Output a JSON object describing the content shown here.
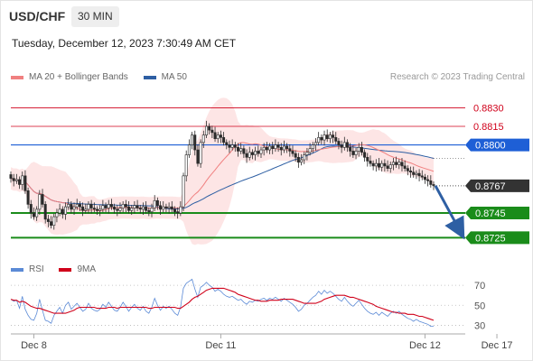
{
  "header": {
    "symbol": "USD/CHF",
    "timeframe": "30 MIN",
    "datetime": "Tuesday, December 12, 2023 7:30:49 AM CET",
    "credit": "Research © 2023 Trading Central"
  },
  "legend": {
    "ma20_label": "MA 20 + Bollinger Bands",
    "ma50_label": "MA 50",
    "rsi_label": "RSI",
    "rsi_ma_label": "9MA"
  },
  "colors": {
    "ma20": "#f08080",
    "ma50": "#2e5fa3",
    "bands_fill": "#fde0e0",
    "candle": "#2b2b2b",
    "resistance": "#d0021b",
    "pivot": "#1e5fd6",
    "support": "#1a8c1a",
    "arrow": "#2e5fa3",
    "rsi": "#5b8ad6",
    "rsi_ma": "#d0021b",
    "current_tag": "#333333"
  },
  "chart_data": [
    {
      "type": "candlestick",
      "ylim": [
        0.871,
        0.885
      ],
      "x_tick_labels": [
        "Dec 8",
        "Dec 11",
        "Dec 12",
        "Dec 17"
      ],
      "x_tick_positions": [
        8,
        73,
        144,
        169
      ],
      "levels": [
        {
          "label": "0.8830",
          "value": 0.883,
          "kind": "resistance"
        },
        {
          "label": "0.8815",
          "value": 0.8815,
          "kind": "resistance"
        },
        {
          "label": "0.8800",
          "value": 0.88,
          "kind": "pivot"
        },
        {
          "label": "0.8745",
          "value": 0.8745,
          "kind": "support"
        },
        {
          "label": "0.8725",
          "value": 0.8725,
          "kind": "support"
        }
      ],
      "current_price": {
        "label": "0.8767",
        "value": 0.8767
      },
      "forecast_target": 0.8725,
      "close": [
        0.8773,
        0.8771,
        0.8772,
        0.8768,
        0.8775,
        0.8763,
        0.8752,
        0.8745,
        0.8742,
        0.8748,
        0.876,
        0.8752,
        0.874,
        0.8738,
        0.8735,
        0.8742,
        0.8745,
        0.8748,
        0.8744,
        0.875,
        0.8752,
        0.8748,
        0.875,
        0.8752,
        0.875,
        0.8747,
        0.8748,
        0.8752,
        0.8749,
        0.8748,
        0.8747,
        0.8748,
        0.8751,
        0.8749,
        0.8752,
        0.875,
        0.8748,
        0.8747,
        0.8749,
        0.8752,
        0.875,
        0.8747,
        0.8749,
        0.8751,
        0.8749,
        0.8748,
        0.875,
        0.8747,
        0.8746,
        0.8749,
        0.8755,
        0.8751,
        0.8748,
        0.875,
        0.8749,
        0.875,
        0.8748,
        0.8746,
        0.8745,
        0.875,
        0.8775,
        0.8792,
        0.88,
        0.8808,
        0.8796,
        0.8785,
        0.8802,
        0.8808,
        0.8815,
        0.8812,
        0.881,
        0.8805,
        0.8808,
        0.8806,
        0.8802,
        0.88,
        0.8798,
        0.88,
        0.8798,
        0.8795,
        0.8797,
        0.8793,
        0.879,
        0.8794,
        0.8792,
        0.8795,
        0.8793,
        0.8796,
        0.8798,
        0.8796,
        0.8799,
        0.8797,
        0.88,
        0.8798,
        0.8796,
        0.8799,
        0.8797,
        0.8795,
        0.8793,
        0.879,
        0.8786,
        0.8788,
        0.8792,
        0.8794,
        0.8797,
        0.88,
        0.8802,
        0.8806,
        0.8804,
        0.8808,
        0.8805,
        0.8808,
        0.8806,
        0.8803,
        0.88,
        0.8798,
        0.8802,
        0.8798,
        0.8795,
        0.8792,
        0.8795,
        0.8798,
        0.8794,
        0.879,
        0.8787,
        0.8785,
        0.8783,
        0.8785,
        0.8782,
        0.8785,
        0.8783,
        0.8781,
        0.8784,
        0.8786,
        0.8784,
        0.8786,
        0.8783,
        0.8781,
        0.8779,
        0.8778,
        0.8776,
        0.8777,
        0.8775,
        0.8774,
        0.8772,
        0.8771,
        0.8768,
        0.8767
      ]
    },
    {
      "type": "line",
      "ylim": [
        25,
        80
      ],
      "y_tick_labels": [
        "70",
        "50",
        "30"
      ],
      "y_ticks": [
        70,
        50,
        30
      ],
      "series": [
        {
          "name": "RSI",
          "values": [
            56,
            54,
            55,
            47,
            59,
            46,
            40,
            36,
            35,
            42,
            56,
            45,
            35,
            34,
            32,
            40,
            44,
            48,
            42,
            50,
            53,
            46,
            49,
            52,
            48,
            44,
            46,
            52,
            47,
            45,
            44,
            46,
            51,
            48,
            53,
            49,
            45,
            44,
            48,
            53,
            49,
            44,
            48,
            51,
            47,
            45,
            49,
            44,
            42,
            48,
            57,
            50,
            45,
            49,
            47,
            49,
            46,
            42,
            40,
            48,
            67,
            72,
            74,
            76,
            66,
            58,
            68,
            70,
            73,
            70,
            68,
            64,
            66,
            64,
            61,
            59,
            58,
            59,
            57,
            55,
            56,
            53,
            51,
            54,
            53,
            55,
            54,
            56,
            57,
            55,
            57,
            56,
            58,
            56,
            54,
            57,
            55,
            53,
            51,
            48,
            44,
            46,
            50,
            52,
            55,
            58,
            60,
            64,
            61,
            65,
            62,
            64,
            62,
            59,
            56,
            54,
            58,
            54,
            51,
            49,
            52,
            55,
            51,
            47,
            44,
            42,
            41,
            43,
            40,
            43,
            41,
            39,
            42,
            44,
            42,
            44,
            41,
            39,
            37,
            36,
            34,
            36,
            34,
            33,
            32,
            31,
            29,
            29
          ]
        },
        {
          "name": "9MA",
          "values": [
            56,
            55,
            55,
            53,
            54,
            53,
            51,
            49,
            48,
            47,
            47,
            46,
            45,
            44,
            43,
            42,
            42,
            42,
            42,
            42,
            43,
            44,
            45,
            47,
            48,
            48,
            48,
            48,
            48,
            48,
            47,
            47,
            47,
            47,
            48,
            48,
            48,
            47,
            48,
            48,
            48,
            48,
            48,
            48,
            48,
            48,
            48,
            48,
            47,
            47,
            48,
            48,
            48,
            48,
            48,
            48,
            48,
            48,
            47,
            47,
            49,
            51,
            53,
            56,
            58,
            59,
            61,
            63,
            65,
            66,
            67,
            67,
            67,
            67,
            67,
            66,
            65,
            64,
            63,
            61,
            60,
            59,
            58,
            57,
            56,
            55,
            55,
            54,
            54,
            54,
            55,
            55,
            55,
            55,
            56,
            56,
            56,
            56,
            56,
            55,
            54,
            53,
            52,
            52,
            52,
            52,
            52,
            53,
            54,
            56,
            57,
            58,
            59,
            60,
            60,
            60,
            60,
            59,
            58,
            58,
            57,
            56,
            55,
            54,
            53,
            52,
            51,
            49,
            48,
            47,
            46,
            45,
            44,
            43,
            43,
            42,
            42,
            42,
            41,
            41,
            41,
            40,
            39,
            39,
            38,
            37,
            36,
            35
          ]
        }
      ]
    }
  ]
}
